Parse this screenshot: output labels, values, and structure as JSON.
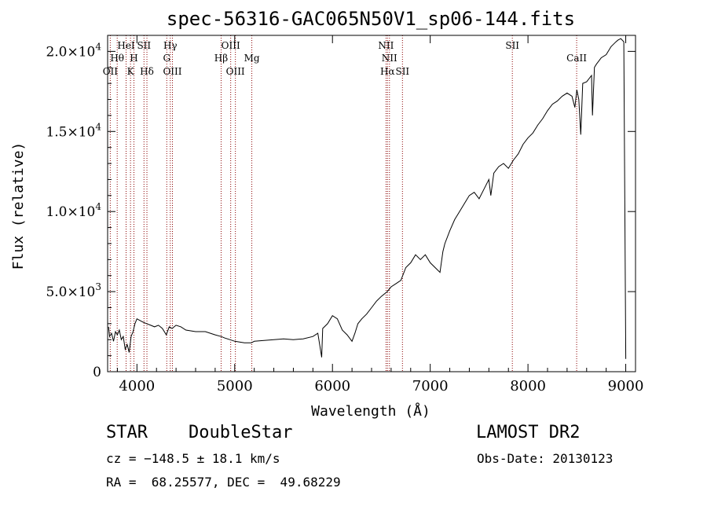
{
  "chart_data": {
    "type": "line",
    "title": "spec-56316-GAC065N50V1_sp06-144.fits",
    "xlabel": "Wavelength (Å)",
    "ylabel": "Flux (relative)",
    "xlim": [
      3700,
      9100
    ],
    "ylim": [
      0,
      21000
    ],
    "x_ticks": [
      4000,
      5000,
      6000,
      7000,
      8000,
      9000
    ],
    "x_tick_labels": [
      "4000",
      "5000",
      "6000",
      "7000",
      "8000",
      "9000"
    ],
    "y_ticks": [
      0,
      5000,
      10000,
      15000,
      20000
    ],
    "y_tick_labels": [
      {
        "mantissa": "0",
        "exp": ""
      },
      {
        "mantissa": "5.0×10",
        "exp": "3"
      },
      {
        "mantissa": "1.0×10",
        "exp": "4"
      },
      {
        "mantissa": "1.5×10",
        "exp": "4"
      },
      {
        "mantissa": "2.0×10",
        "exp": "4"
      }
    ],
    "line_color": "#000000",
    "marker_color": "#8b0000",
    "series": [
      {
        "x": [
          3710,
          3720,
          3740,
          3760,
          3780,
          3800,
          3820,
          3840,
          3860,
          3880,
          3900,
          3920,
          3940,
          3960,
          3980,
          4000,
          4030,
          4060,
          4100,
          4140,
          4180,
          4220,
          4260,
          4300,
          4330,
          4360,
          4400,
          4450,
          4500,
          4600,
          4700,
          4800,
          4860,
          4900,
          4950,
          5000,
          5050,
          5100,
          5170,
          5200,
          5300,
          5400,
          5500,
          5600,
          5700,
          5800,
          5850,
          5890,
          5900,
          5950,
          6000,
          6050,
          6100,
          6150,
          6200,
          6230,
          6260,
          6300,
          6350,
          6400,
          6450,
          6500,
          6560,
          6600,
          6650,
          6700,
          6750,
          6800,
          6850,
          6900,
          6950,
          7000,
          7050,
          7100,
          7130,
          7150,
          7200,
          7250,
          7300,
          7350,
          7400,
          7450,
          7500,
          7550,
          7600,
          7620,
          7650,
          7700,
          7750,
          7800,
          7850,
          7900,
          7950,
          8000,
          8050,
          8100,
          8150,
          8200,
          8250,
          8300,
          8350,
          8400,
          8450,
          8480,
          8500,
          8520,
          8540,
          8560,
          8600,
          8650,
          8660,
          8680,
          8700,
          8750,
          8800,
          8850,
          8900,
          8920,
          8950,
          8980,
          9000
        ],
        "y": [
          2800,
          2200,
          2400,
          1900,
          2500,
          2300,
          2600,
          2000,
          2200,
          1400,
          1700,
          1200,
          2200,
          2500,
          3000,
          3300,
          3200,
          3100,
          3000,
          2900,
          2800,
          2900,
          2700,
          2300,
          2800,
          2700,
          2900,
          2800,
          2600,
          2500,
          2500,
          2300,
          2200,
          2100,
          2000,
          1900,
          1850,
          1800,
          1800,
          1900,
          1950,
          2000,
          2050,
          2000,
          2050,
          2200,
          2400,
          900,
          2700,
          3000,
          3500,
          3300,
          2600,
          2300,
          1900,
          2400,
          3000,
          3300,
          3600,
          4000,
          4400,
          4700,
          5000,
          5300,
          5500,
          5700,
          6500,
          6800,
          7300,
          7000,
          7300,
          6800,
          6500,
          6200,
          7500,
          8000,
          8800,
          9500,
          10000,
          10500,
          11000,
          11200,
          10800,
          11400,
          12000,
          11000,
          12400,
          12800,
          13000,
          12700,
          13200,
          13600,
          14200,
          14600,
          14900,
          15400,
          15800,
          16300,
          16700,
          16900,
          17200,
          17400,
          17200,
          16500,
          17600,
          17000,
          14800,
          18000,
          18100,
          18500,
          16000,
          19000,
          19200,
          19600,
          19800,
          20300,
          20600,
          20700,
          20800,
          20600,
          800
        ]
      }
    ],
    "lines": [
      {
        "label": "OII",
        "x": 3727,
        "row": 3
      },
      {
        "label": "Hθ",
        "x": 3798,
        "row": 2
      },
      {
        "label": "HeI",
        "x": 3889,
        "row": 1
      },
      {
        "label": "K",
        "x": 3934,
        "row": 3
      },
      {
        "label": "H",
        "x": 3969,
        "row": 2
      },
      {
        "label": "SII",
        "x": 4072,
        "row": 1
      },
      {
        "label": "Hδ",
        "x": 4102,
        "row": 3
      },
      {
        "label": "Hγ",
        "x": 4341,
        "row": 1
      },
      {
        "label": "G",
        "x": 4305,
        "row": 2
      },
      {
        "label": "OIII",
        "x": 4363,
        "row": 3
      },
      {
        "label": "Hβ",
        "x": 4861,
        "row": 2
      },
      {
        "label": "OIII",
        "x": 4959,
        "row": 1
      },
      {
        "label": "OIII",
        "x": 5007,
        "row": 3
      },
      {
        "label": "Mg",
        "x": 5175,
        "row": 2
      },
      {
        "label": "NII",
        "x": 6548,
        "row": 1
      },
      {
        "label": "NII",
        "x": 6583,
        "row": 2
      },
      {
        "label": "Hα",
        "x": 6563,
        "row": 3
      },
      {
        "label": "SII",
        "x": 6716,
        "row": 3
      },
      {
        "label": "SII",
        "x": 7840,
        "row": 1
      },
      {
        "label": "CaII",
        "x": 8498,
        "row": 2
      }
    ]
  },
  "info": {
    "class": "STAR",
    "subclass": "DoubleStar",
    "survey": "LAMOST DR2",
    "cz": "cz = −148.5 ± 18.1 km/s",
    "obsdate": "Obs-Date: 20130123",
    "radec": "RA =  68.25577, DEC =  49.68229"
  }
}
